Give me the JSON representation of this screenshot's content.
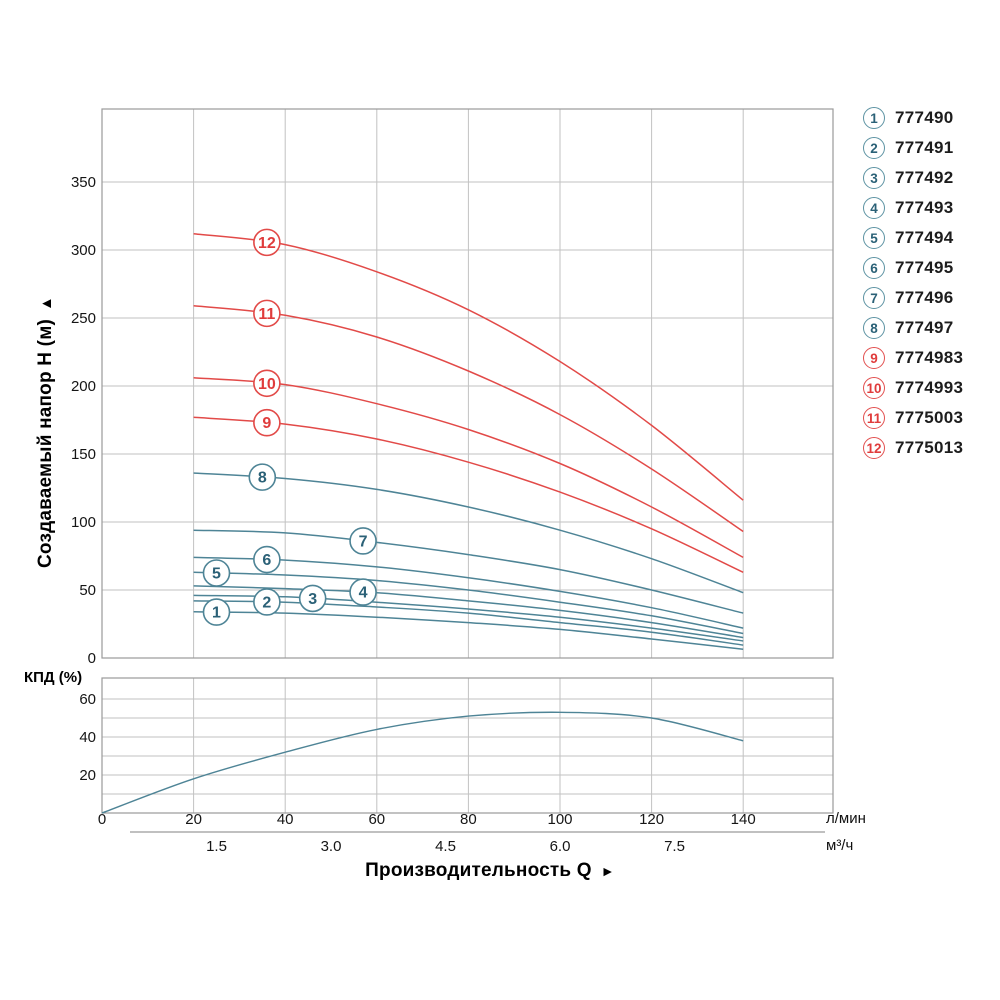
{
  "labels": {
    "y_axis_title": "Создаваемый напор H (м)",
    "y_axis_arrow": "▲",
    "x_axis_title": "Производительность Q",
    "x_axis_arrow": "►",
    "efficiency_axis": "КПД (%)",
    "unit_primary": "л/мин",
    "unit_secondary": "м³/ч"
  },
  "colors": {
    "grid": "#c2c2c2",
    "border": "#9a9a9a",
    "blue_curve": "#4e8496",
    "blue_label": "#2b6177",
    "red_curve": "#e24a48",
    "red_label": "#e03c3c",
    "tick_text": "#151515"
  },
  "legend": {
    "position": "right-outside",
    "items": [
      {
        "num": "1",
        "code": "777490",
        "group": "blue"
      },
      {
        "num": "2",
        "code": "777491",
        "group": "blue"
      },
      {
        "num": "3",
        "code": "777492",
        "group": "blue"
      },
      {
        "num": "4",
        "code": "777493",
        "group": "blue"
      },
      {
        "num": "5",
        "code": "777494",
        "group": "blue"
      },
      {
        "num": "6",
        "code": "777495",
        "group": "blue"
      },
      {
        "num": "7",
        "code": "777496",
        "group": "blue"
      },
      {
        "num": "8",
        "code": "777497",
        "group": "blue"
      },
      {
        "num": "9",
        "code": "7774983",
        "group": "red"
      },
      {
        "num": "10",
        "code": "7774993",
        "group": "red"
      },
      {
        "num": "11",
        "code": "7775003",
        "group": "red"
      },
      {
        "num": "12",
        "code": "7775013",
        "group": "red"
      }
    ]
  },
  "chart_data": [
    {
      "type": "line",
      "title": "",
      "ylabel": "Создаваемый напор H (м)",
      "xlabel": "Производительность Q",
      "x_unit": "л/мин",
      "grid": true,
      "xlim": [
        0,
        160
      ],
      "ylim": [
        0,
        403
      ],
      "y_ticks": [
        0,
        50,
        100,
        150,
        200,
        250,
        300,
        350
      ],
      "x_ticks": [
        0,
        20,
        40,
        60,
        80,
        100,
        120,
        140
      ],
      "x_ticks_secondary": {
        "unit": "м³/ч",
        "values": [
          "1.5",
          "3.0",
          "4.5",
          "6.0",
          "7.5"
        ],
        "lmin_per_unit": 16.6667
      },
      "x": [
        20,
        40,
        60,
        80,
        100,
        120,
        140
      ],
      "series": [
        {
          "num": "1",
          "code": "777490",
          "group": "blue",
          "label_at_x": 25,
          "values": [
            34,
            33,
            30,
            26,
            21,
            14,
            6.5
          ]
        },
        {
          "num": "2",
          "code": "777491",
          "group": "blue",
          "label_at_x": 36,
          "values": [
            42,
            41,
            37.5,
            33,
            26,
            19,
            9.5
          ]
        },
        {
          "num": "3",
          "code": "777492",
          "group": "blue",
          "label_at_x": 46,
          "values": [
            46,
            45,
            41,
            36,
            30,
            22,
            12.5
          ]
        },
        {
          "num": "4",
          "code": "777493",
          "group": "blue",
          "label_at_x": 57,
          "values": [
            53,
            51,
            48,
            42,
            35,
            26,
            15
          ]
        },
        {
          "num": "5",
          "code": "777494",
          "group": "blue",
          "label_at_x": 25,
          "values": [
            63,
            61,
            57,
            50,
            41,
            31,
            18
          ]
        },
        {
          "num": "6",
          "code": "777495",
          "group": "blue",
          "label_at_x": 36,
          "values": [
            74,
            72,
            67,
            59,
            49,
            37,
            22
          ]
        },
        {
          "num": "7",
          "code": "777496",
          "group": "blue",
          "label_at_x": 57,
          "values": [
            94,
            92,
            85,
            76,
            65,
            50,
            33
          ]
        },
        {
          "num": "8",
          "code": "777497",
          "group": "blue",
          "label_at_x": 35,
          "values": [
            136,
            132,
            124,
            111,
            94,
            73,
            48
          ]
        },
        {
          "num": "9",
          "code": "7774983",
          "group": "red",
          "label_at_x": 36,
          "values": [
            177,
            172,
            161,
            144,
            122,
            95,
            63
          ]
        },
        {
          "num": "10",
          "code": "7774993",
          "group": "red",
          "label_at_x": 36,
          "values": [
            206,
            201,
            187,
            168,
            143,
            111,
            74
          ]
        },
        {
          "num": "11",
          "code": "7775003",
          "group": "red",
          "label_at_x": 36,
          "values": [
            259,
            252,
            236,
            211,
            179,
            139,
            93
          ]
        },
        {
          "num": "12",
          "code": "7775013",
          "group": "red",
          "label_at_x": 36,
          "values": [
            312,
            304,
            284,
            256,
            218,
            171,
            116
          ]
        }
      ]
    },
    {
      "type": "line",
      "title": "",
      "ylabel": "КПД (%)",
      "x_unit": "л/мин",
      "grid": true,
      "xlim": [
        0,
        160
      ],
      "ylim": [
        0,
        71
      ],
      "y_grid_step": 10,
      "y_ticks_labeled": [
        20,
        40,
        60
      ],
      "x": [
        0,
        20,
        40,
        60,
        80,
        100,
        120,
        140
      ],
      "series": [
        {
          "name": "КПД",
          "group": "blue",
          "values": [
            0,
            18,
            32,
            44,
            51,
            53,
            50,
            38
          ]
        }
      ]
    }
  ]
}
